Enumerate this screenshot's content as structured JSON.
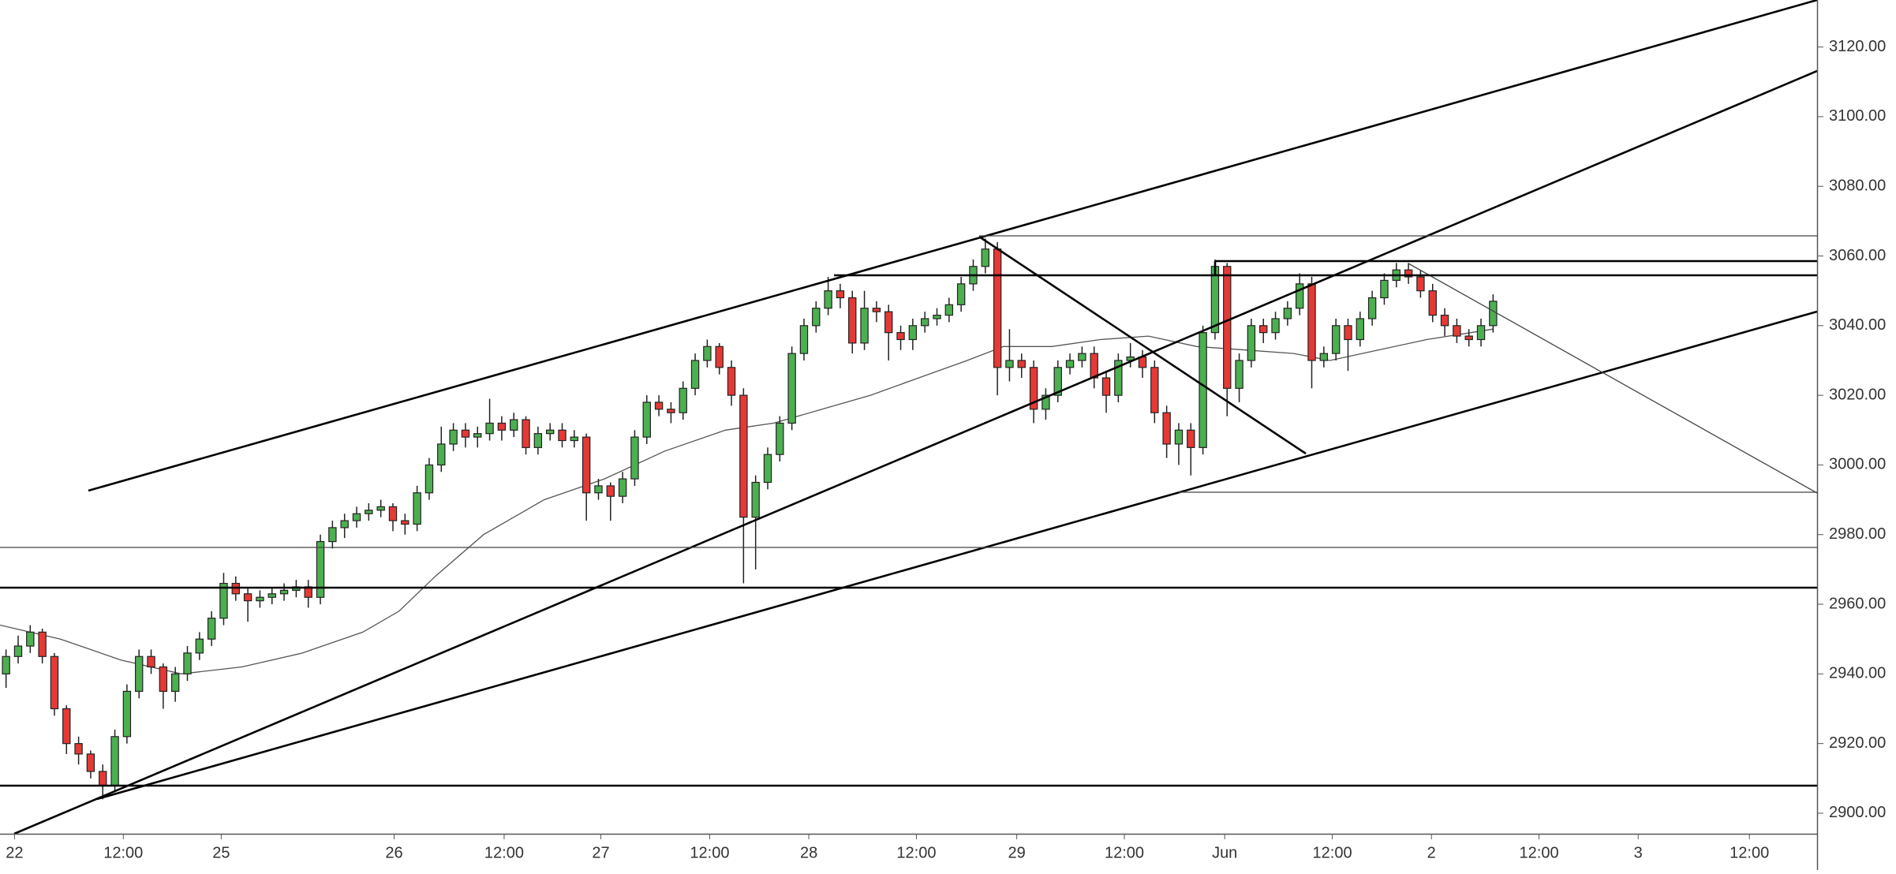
{
  "chart_data": {
    "type": "candlestick",
    "up_color": "#4caf50",
    "down_color": "#e53935",
    "xlim": [
      0,
      150.3
    ],
    "ylim": [
      2894.1,
      3133.5
    ],
    "xticks": [
      {
        "value": 1.2,
        "label": "22"
      },
      {
        "value": 10.2,
        "label": "12:00"
      },
      {
        "value": 18.3,
        "label": "25"
      },
      {
        "value": 32.6,
        "label": "26"
      },
      {
        "value": 41.7,
        "label": "12:00"
      },
      {
        "value": 49.7,
        "label": "27"
      },
      {
        "value": 58.7,
        "label": "12:00"
      },
      {
        "value": 66.9,
        "label": "28"
      },
      {
        "value": 75.8,
        "label": "12:00"
      },
      {
        "value": 84.1,
        "label": "29"
      },
      {
        "value": 93,
        "label": "12:00"
      },
      {
        "value": 101.3,
        "label": "Jun"
      },
      {
        "value": 110.2,
        "label": "12:00"
      },
      {
        "value": 118.4,
        "label": "2"
      },
      {
        "value": 127.3,
        "label": "12:00"
      },
      {
        "value": 135.5,
        "label": "3"
      },
      {
        "value": 144.7,
        "label": "12:00"
      }
    ],
    "yticks": [
      {
        "value": 2900,
        "label": "2900.00"
      },
      {
        "value": 2920,
        "label": "2920.00"
      },
      {
        "value": 2940,
        "label": "2940.00"
      },
      {
        "value": 2960,
        "label": "2960.00"
      },
      {
        "value": 2980,
        "label": "2980.00"
      },
      {
        "value": 3000,
        "label": "3000.00"
      },
      {
        "value": 3020,
        "label": "3020.00"
      },
      {
        "value": 3040,
        "label": "3040.00"
      },
      {
        "value": 3060,
        "label": "3060.00"
      },
      {
        "value": 3080,
        "label": "3080.00"
      },
      {
        "value": 3100,
        "label": "3100.00"
      },
      {
        "value": 3120,
        "label": "3120.00"
      }
    ],
    "open": [
      2940,
      2945,
      2948,
      2952,
      2945,
      2930,
      2920,
      2917,
      2912,
      2908,
      2922,
      2935,
      2945,
      2942,
      2935,
      2940,
      2946,
      2950,
      2956,
      2966,
      2963,
      2961,
      2962,
      2963,
      2964,
      2965,
      2962,
      2978,
      2982,
      2984,
      2986,
      2987,
      2988,
      2984,
      2983,
      2992,
      3000,
      3006,
      3010,
      3008,
      3009,
      3012,
      3010,
      3013,
      3005,
      3009,
      3010,
      3007,
      3008,
      2992,
      2994,
      2991,
      2996,
      3008,
      3018,
      3016,
      3015,
      3022,
      3030,
      3034,
      3028,
      3020,
      2985,
      2995,
      3003,
      3012,
      3032,
      3040,
      3045,
      3050,
      3048,
      3035,
      3045,
      3044,
      3038,
      3036,
      3040,
      3042,
      3043,
      3046,
      3052,
      3057,
      3062,
      3028,
      3030,
      3028,
      3016,
      3020,
      3028,
      3030,
      3032,
      3025,
      3020,
      3030,
      3031,
      3028,
      3015,
      3006,
      3010,
      3005,
      3038,
      3057,
      3022,
      3030,
      3040,
      3038,
      3042,
      3045,
      3052,
      3030,
      3032,
      3040,
      3036,
      3042,
      3048,
      3053,
      3056,
      3054,
      3050,
      3043,
      3040,
      3037,
      3036,
      3040
    ],
    "high": [
      2947,
      2951,
      2954,
      2953,
      2946,
      2931,
      2922,
      2918,
      2914,
      2924,
      2937,
      2947,
      2947,
      2943,
      2942,
      2948,
      2952,
      2958,
      2969,
      2968,
      2965,
      2964,
      2965,
      2966,
      2967,
      2967,
      2980,
      2984,
      2986,
      2988,
      2989,
      2990,
      2989,
      2986,
      2994,
      3002,
      3011,
      3012,
      3012,
      3011,
      3019,
      3014,
      3015,
      3014,
      3011,
      3012,
      3012,
      3010,
      3009,
      2996,
      2995,
      2998,
      3010,
      3020,
      3020,
      3018,
      3024,
      3032,
      3036,
      3035,
      3030,
      3022,
      2997,
      3005,
      3014,
      3034,
      3042,
      3047,
      3054,
      3052,
      3050,
      3050,
      3047,
      3046,
      3040,
      3042,
      3044,
      3045,
      3048,
      3054,
      3059,
      3065,
      3064,
      3039,
      3032,
      3030,
      3022,
      3030,
      3032,
      3034,
      3034,
      3027,
      3032,
      3035,
      3033,
      3030,
      3017,
      3012,
      3012,
      3040,
      3059,
      3058,
      3032,
      3042,
      3042,
      3044,
      3047,
      3055,
      3054,
      3034,
      3042,
      3042,
      3044,
      3050,
      3055,
      3058,
      3058,
      3056,
      3052,
      3045,
      3042,
      3039,
      3042,
      3049
    ],
    "low": [
      2936,
      2943,
      2946,
      2943,
      2928,
      2917,
      2914,
      2910,
      2904,
      2906,
      2920,
      2933,
      2940,
      2930,
      2932,
      2938,
      2944,
      2948,
      2954,
      2961,
      2955,
      2959,
      2960,
      2961,
      2962,
      2959,
      2960,
      2976,
      2979,
      2982,
      2984,
      2985,
      2981,
      2980,
      2981,
      2990,
      2998,
      3004,
      3005,
      3005,
      3007,
      3007,
      3008,
      3003,
      3003,
      3007,
      3005,
      3005,
      2984,
      2990,
      2984,
      2989,
      2994,
      3006,
      3014,
      3012,
      3013,
      3020,
      3028,
      3026,
      3017,
      2966,
      2970,
      2993,
      3001,
      3010,
      3030,
      3038,
      3043,
      3045,
      3032,
      3033,
      3041,
      3030,
      3033,
      3033,
      3038,
      3040,
      3041,
      3044,
      3050,
      3055,
      3020,
      3024,
      3025,
      3012,
      3013,
      3018,
      3026,
      3028,
      3022,
      3015,
      3018,
      3028,
      3025,
      3012,
      3002,
      3000,
      2997,
      3003,
      3036,
      3014,
      3018,
      3028,
      3035,
      3036,
      3040,
      3043,
      3022,
      3028,
      3030,
      3027,
      3034,
      3040,
      3046,
      3051,
      3052,
      3048,
      3041,
      3037,
      3035,
      3034,
      3034,
      3038
    ],
    "close": [
      2945,
      2948,
      2952,
      2945,
      2930,
      2920,
      2917,
      2912,
      2908,
      2922,
      2935,
      2945,
      2942,
      2935,
      2940,
      2946,
      2950,
      2956,
      2966,
      2963,
      2961,
      2962,
      2963,
      2964,
      2965,
      2962,
      2978,
      2982,
      2984,
      2986,
      2987,
      2988,
      2984,
      2983,
      2992,
      3000,
      3006,
      3010,
      3008,
      3009,
      3012,
      3010,
      3013,
      3005,
      3009,
      3010,
      3007,
      3008,
      2992,
      2994,
      2991,
      2996,
      3008,
      3018,
      3016,
      3015,
      3022,
      3030,
      3034,
      3028,
      3020,
      2985,
      2995,
      3003,
      3012,
      3032,
      3040,
      3045,
      3050,
      3048,
      3035,
      3045,
      3044,
      3038,
      3036,
      3040,
      3042,
      3043,
      3046,
      3052,
      3057,
      3062,
      3028,
      3030,
      3028,
      3016,
      3020,
      3028,
      3030,
      3032,
      3025,
      3020,
      3030,
      3031,
      3028,
      3015,
      3006,
      3010,
      3005,
      3038,
      3057,
      3022,
      3030,
      3040,
      3038,
      3042,
      3045,
      3052,
      3030,
      3032,
      3040,
      3036,
      3042,
      3048,
      3053,
      3056,
      3054,
      3050,
      3043,
      3040,
      3037,
      3036,
      3040,
      3047
    ],
    "ma": {
      "color": "#555555",
      "x": [
        0,
        5,
        10,
        15,
        20,
        25,
        30,
        33,
        36,
        40,
        45,
        50,
        55,
        60,
        64,
        68,
        72,
        76,
        80,
        83,
        87,
        91,
        95,
        99,
        103,
        107,
        110,
        114,
        118,
        123.5
      ],
      "values": [
        2954,
        2950,
        2944,
        2940,
        2942,
        2946,
        2952,
        2958,
        2968,
        2980,
        2990,
        2996,
        3004,
        3010,
        3012,
        3016,
        3020,
        3025,
        3030,
        3034,
        3034,
        3036,
        3037,
        3034,
        3033,
        3032,
        3030,
        3033,
        3036,
        3039
      ]
    }
  }
}
